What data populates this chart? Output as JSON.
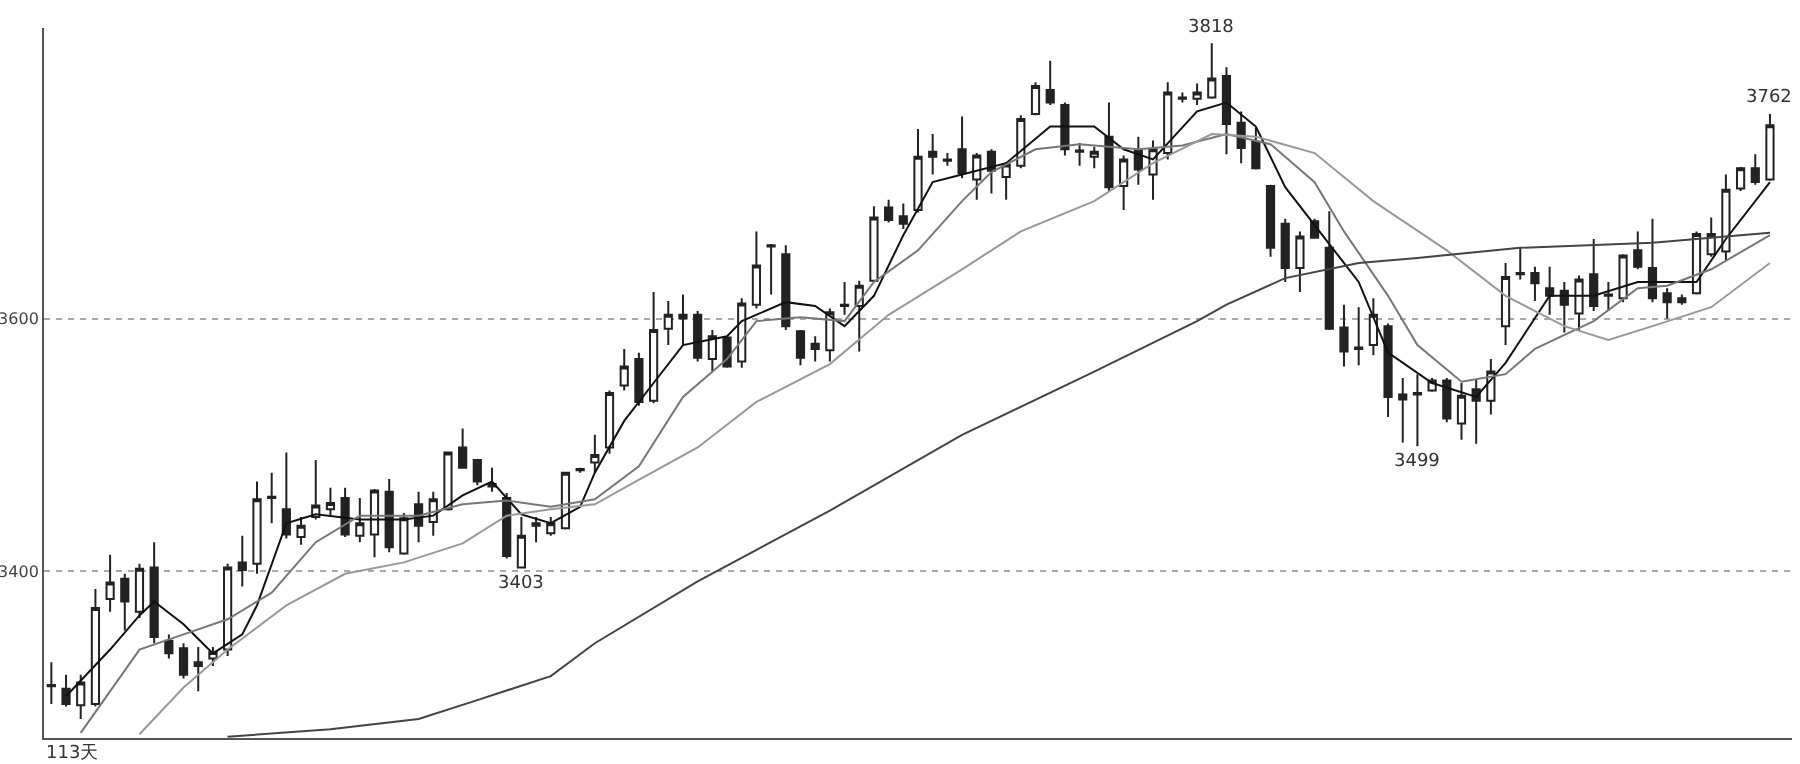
{
  "chart_data": {
    "type": "candlestick",
    "categories": [
      null,
      null,
      null,
      null,
      null,
      null,
      null,
      null,
      null,
      null,
      null,
      null,
      null,
      null,
      null,
      null,
      null,
      null,
      null,
      null,
      null,
      null,
      null,
      null,
      null,
      null,
      null,
      null,
      null,
      null,
      null,
      null,
      null,
      null,
      null,
      null,
      null,
      null,
      null,
      null,
      null,
      null,
      null,
      null,
      null,
      null,
      null,
      null,
      null,
      null,
      null,
      null,
      null,
      null,
      null,
      null,
      null,
      null,
      null,
      null,
      null,
      null,
      null,
      null,
      null,
      null,
      null,
      null,
      null,
      null,
      null,
      null,
      null,
      null,
      null,
      null,
      null,
      null,
      null,
      null,
      null,
      null,
      null,
      null,
      null,
      null,
      null,
      null,
      null,
      null,
      null,
      null,
      null,
      null,
      null,
      null,
      null,
      null,
      null,
      null,
      null,
      null,
      null,
      null,
      null,
      null,
      null,
      null,
      null,
      null,
      null,
      null,
      null,
      null,
      null,
      null,
      null,
      null
    ],
    "ohlc": [
      [
        3309,
        3328,
        3295,
        3310
      ],
      [
        3307,
        3318,
        3293,
        3295
      ],
      [
        3294,
        3318,
        3283,
        3312
      ],
      [
        3295,
        3386,
        3293,
        3371
      ],
      [
        3378,
        3413,
        3368,
        3391
      ],
      [
        3394,
        3398,
        3353,
        3376
      ],
      [
        3368,
        3406,
        3363,
        3402
      ],
      [
        3403,
        3423,
        3343,
        3348
      ],
      [
        3345,
        3350,
        3331,
        3335
      ],
      [
        3339,
        3343,
        3315,
        3318
      ],
      [
        3325,
        3340,
        3305,
        3328
      ],
      [
        3331,
        3340,
        3325,
        3336
      ],
      [
        3338,
        3406,
        3333,
        3403
      ],
      [
        3407,
        3428,
        3388,
        3401
      ],
      [
        3406,
        3471,
        3398,
        3457
      ],
      [
        3458,
        3478,
        3438,
        3459
      ],
      [
        3449,
        3494,
        3426,
        3429
      ],
      [
        3427,
        3443,
        3421,
        3436
      ],
      [
        3443,
        3488,
        3441,
        3452
      ],
      [
        3449,
        3466,
        3443,
        3454
      ],
      [
        3458,
        3466,
        3427,
        3429
      ],
      [
        3428,
        3458,
        3423,
        3438
      ],
      [
        3429,
        3465,
        3411,
        3464
      ],
      [
        3463,
        3473,
        3415,
        3419
      ],
      [
        3414,
        3446,
        3413,
        3442
      ],
      [
        3453,
        3463,
        3423,
        3436
      ],
      [
        3439,
        3463,
        3428,
        3457
      ],
      [
        3449,
        3494,
        3448,
        3494
      ],
      [
        3498,
        3513,
        3482,
        3482
      ],
      [
        3488,
        3488,
        3468,
        3471
      ],
      [
        3469,
        3482,
        3463,
        3467
      ],
      [
        3458,
        3462,
        3410,
        3412
      ],
      [
        3403,
        3443,
        3403,
        3428
      ],
      [
        3438,
        3443,
        3423,
        3436
      ],
      [
        3430,
        3443,
        3428,
        3438
      ],
      [
        3434,
        3478,
        3433,
        3478
      ],
      [
        3480,
        3482,
        3478,
        3481
      ],
      [
        3486,
        3508,
        3478,
        3492
      ],
      [
        3498,
        3543,
        3493,
        3541
      ],
      [
        3547,
        3576,
        3543,
        3562
      ],
      [
        3568,
        3573,
        3531,
        3534
      ],
      [
        3535,
        3621,
        3533,
        3591
      ],
      [
        3592,
        3614,
        3579,
        3603
      ],
      [
        3600,
        3619,
        3579,
        3603
      ],
      [
        3603,
        3606,
        3566,
        3569
      ],
      [
        3568,
        3591,
        3558,
        3586
      ],
      [
        3585,
        3586,
        3561,
        3562
      ],
      [
        3566,
        3616,
        3561,
        3612
      ],
      [
        3611,
        3669,
        3608,
        3642
      ],
      [
        3658,
        3659,
        3619,
        3657
      ],
      [
        3651,
        3658,
        3591,
        3594
      ],
      [
        3590,
        3591,
        3563,
        3569
      ],
      [
        3580,
        3586,
        3566,
        3576
      ],
      [
        3575,
        3608,
        3566,
        3605
      ],
      [
        3610,
        3629,
        3603,
        3611
      ],
      [
        3610,
        3630,
        3574,
        3626
      ],
      [
        3630,
        3689,
        3629,
        3680
      ],
      [
        3688,
        3694,
        3676,
        3678
      ],
      [
        3681,
        3691,
        3671,
        3675
      ],
      [
        3686,
        3750,
        3684,
        3728
      ],
      [
        3732,
        3746,
        3714,
        3728
      ],
      [
        3725,
        3731,
        3721,
        3726
      ],
      [
        3734,
        3760,
        3711,
        3715
      ],
      [
        3710,
        3731,
        3694,
        3729
      ],
      [
        3732,
        3734,
        3699,
        3717
      ],
      [
        3712,
        3724,
        3694,
        3722
      ],
      [
        3721,
        3761,
        3719,
        3758
      ],
      [
        3762,
        3787,
        3761,
        3784
      ],
      [
        3781,
        3804,
        3769,
        3771
      ],
      [
        3769,
        3771,
        3729,
        3734
      ],
      [
        3733,
        3739,
        3721,
        3732
      ],
      [
        3728,
        3736,
        3719,
        3732
      ],
      [
        3744,
        3771,
        3701,
        3704
      ],
      [
        3705,
        3729,
        3686,
        3726
      ],
      [
        3733,
        3744,
        3706,
        3718
      ],
      [
        3714,
        3741,
        3694,
        3734
      ],
      [
        3731,
        3787,
        3726,
        3779
      ],
      [
        3774,
        3779,
        3771,
        3775
      ],
      [
        3774,
        3786,
        3769,
        3779
      ],
      [
        3775,
        3818,
        3774,
        3790
      ],
      [
        3792,
        3799,
        3730,
        3754
      ],
      [
        3755,
        3764,
        3723,
        3735
      ],
      [
        3740,
        3751,
        3718,
        3719
      ],
      [
        3705,
        3706,
        3649,
        3656
      ],
      [
        3675,
        3679,
        3629,
        3640
      ],
      [
        3640,
        3669,
        3621,
        3665
      ],
      [
        3677,
        3679,
        3664,
        3664
      ],
      [
        3656,
        3685,
        3591,
        3592
      ],
      [
        3593,
        3611,
        3562,
        3574
      ],
      [
        3576,
        3609,
        3563,
        3577
      ],
      [
        3579,
        3616,
        3571,
        3603
      ],
      [
        3594,
        3596,
        3522,
        3538
      ],
      [
        3540,
        3553,
        3502,
        3536
      ],
      [
        3540,
        3556,
        3499,
        3541
      ],
      [
        3543,
        3553,
        3542,
        3551
      ],
      [
        3551,
        3553,
        3518,
        3521
      ],
      [
        3517,
        3549,
        3504,
        3539
      ],
      [
        3544,
        3552,
        3501,
        3535
      ],
      [
        3535,
        3568,
        3524,
        3558
      ],
      [
        3594,
        3644,
        3579,
        3633
      ],
      [
        3635,
        3656,
        3631,
        3636
      ],
      [
        3636,
        3641,
        3614,
        3628
      ],
      [
        3624,
        3641,
        3603,
        3618
      ],
      [
        3622,
        3629,
        3589,
        3611
      ],
      [
        3604,
        3634,
        3591,
        3631
      ],
      [
        3635,
        3663,
        3606,
        3610
      ],
      [
        3618,
        3629,
        3606,
        3619
      ],
      [
        3616,
        3651,
        3613,
        3650
      ],
      [
        3654,
        3669,
        3639,
        3641
      ],
      [
        3640,
        3679,
        3613,
        3616
      ],
      [
        3620,
        3624,
        3600,
        3613
      ],
      [
        3613,
        3619,
        3611,
        3616
      ],
      [
        3620,
        3669,
        3619,
        3667
      ],
      [
        3651,
        3680,
        3649,
        3667
      ],
      [
        3653,
        3714,
        3646,
        3702
      ],
      [
        3703,
        3720,
        3701,
        3719
      ],
      [
        3719,
        3730,
        3706,
        3708
      ],
      [
        3710,
        3762,
        3709,
        3753
      ]
    ],
    "series": [
      {
        "type": "line",
        "color": "#111111",
        "values": [
          null,
          3301,
          null,
          null,
          3338,
          null,
          3365,
          3376,
          null,
          3358,
          null,
          3335,
          null,
          3350,
          3373,
          null,
          3438,
          null,
          3445,
          null,
          null,
          3441,
          null,
          null,
          3441,
          null,
          3444,
          null,
          3460,
          null,
          3471,
          null,
          3445,
          null,
          3438,
          null,
          3451,
          3478,
          null,
          3519,
          null,
          3549,
          null,
          3579,
          null,
          null,
          3586,
          3598,
          null,
          null,
          3613,
          null,
          3610,
          null,
          3594,
          null,
          3618,
          null,
          3666,
          null,
          3708,
          null,
          3714,
          null,
          null,
          3723,
          null,
          null,
          3752,
          null,
          null,
          3752,
          null,
          3734,
          null,
          3726,
          null,
          null,
          3764,
          null,
          3771,
          null,
          3752,
          null,
          3704,
          null,
          null,
          3659,
          null,
          3629,
          null,
          3573,
          null,
          null,
          3549,
          null,
          null,
          3538,
          null,
          3565,
          null,
          null,
          3618,
          null,
          null,
          3618,
          null,
          null,
          3629,
          null,
          3629,
          null,
          3629,
          null,
          3663,
          null,
          null,
          3708
        ]
      },
      {
        "type": "line",
        "color": "#777777",
        "values": [
          null,
          null,
          3272,
          null,
          null,
          null,
          3338,
          null,
          null,
          3350,
          null,
          null,
          3362,
          null,
          null,
          3383,
          null,
          null,
          3423,
          null,
          null,
          3444,
          null,
          null,
          null,
          3444,
          null,
          null,
          3453,
          null,
          null,
          3456,
          null,
          null,
          3451,
          null,
          null,
          3457,
          null,
          null,
          3483,
          null,
          null,
          3538,
          null,
          null,
          3568,
          null,
          3598,
          null,
          null,
          3601,
          null,
          null,
          3598,
          null,
          3629,
          null,
          null,
          3654,
          null,
          null,
          3693,
          null,
          3716,
          null,
          null,
          3734,
          null,
          null,
          3738,
          null,
          null,
          null,
          3734,
          null,
          null,
          3737,
          null,
          null,
          3746,
          null,
          null,
          3738,
          null,
          null,
          3708,
          null,
          3669,
          null,
          null,
          3618,
          null,
          3579,
          null,
          null,
          3550,
          null,
          null,
          3556,
          null,
          3576,
          null,
          null,
          null,
          3598,
          null,
          null,
          3624,
          null,
          3626,
          null,
          null,
          3639,
          null,
          null,
          null,
          3666
        ]
      },
      {
        "type": "line",
        "color": "#999999",
        "values": [
          null,
          null,
          null,
          null,
          null,
          null,
          3271,
          null,
          null,
          3308,
          null,
          null,
          3338,
          null,
          null,
          null,
          3373,
          null,
          null,
          null,
          3398,
          null,
          null,
          null,
          3407,
          null,
          null,
          null,
          3422,
          null,
          null,
          3444,
          null,
          null,
          3449,
          null,
          null,
          3453,
          null,
          3466,
          null,
          null,
          null,
          null,
          3498,
          null,
          null,
          null,
          3534,
          null,
          null,
          null,
          null,
          3564,
          null,
          null,
          null,
          3603,
          null,
          null,
          null,
          null,
          3639,
          null,
          null,
          null,
          3669,
          null,
          null,
          null,
          null,
          3693,
          null,
          null,
          null,
          3723,
          null,
          null,
          null,
          3746,
          null,
          null,
          3744,
          null,
          null,
          null,
          3731,
          null,
          null,
          null,
          3693,
          null,
          null,
          null,
          null,
          3654,
          null,
          null,
          null,
          3618,
          null,
          null,
          null,
          3594,
          null,
          null,
          3583,
          null,
          null,
          3594,
          null,
          null,
          null,
          3609,
          null,
          null,
          null,
          3644
        ]
      },
      {
        "type": "line",
        "color": "#444444",
        "values": [
          null,
          null,
          null,
          null,
          null,
          null,
          null,
          null,
          null,
          null,
          null,
          null,
          3269,
          null,
          null,
          null,
          null,
          null,
          null,
          3275,
          null,
          null,
          null,
          null,
          null,
          3283,
          null,
          null,
          null,
          3298,
          null,
          null,
          null,
          null,
          3317,
          null,
          null,
          3343,
          null,
          null,
          null,
          null,
          null,
          null,
          3392,
          null,
          null,
          null,
          null,
          null,
          null,
          null,
          null,
          3448,
          null,
          null,
          null,
          null,
          null,
          null,
          null,
          null,
          3508,
          null,
          null,
          null,
          null,
          null,
          null,
          null,
          null,
          3558,
          null,
          null,
          null,
          null,
          null,
          null,
          3598,
          null,
          3611,
          null,
          null,
          null,
          3632,
          null,
          null,
          null,
          null,
          3644,
          null,
          null,
          null,
          3648,
          null,
          null,
          null,
          null,
          null,
          null,
          3656,
          null,
          null,
          null,
          null,
          null,
          null,
          null,
          null,
          3660,
          null,
          null,
          null,
          null,
          null,
          null,
          null,
          3668
        ]
      }
    ],
    "ylim": [
      3268,
      3830
    ],
    "yticks": [
      3400,
      3600
    ],
    "grid": "y",
    "tick_labels": "y",
    "annotations": [
      {
        "text": "3818",
        "y": 3818
      },
      {
        "text": "3403",
        "y": 3403
      },
      {
        "text": "3499",
        "y": 3499
      },
      {
        "text": "3762",
        "y": 3762
      },
      "113天"
    ]
  }
}
